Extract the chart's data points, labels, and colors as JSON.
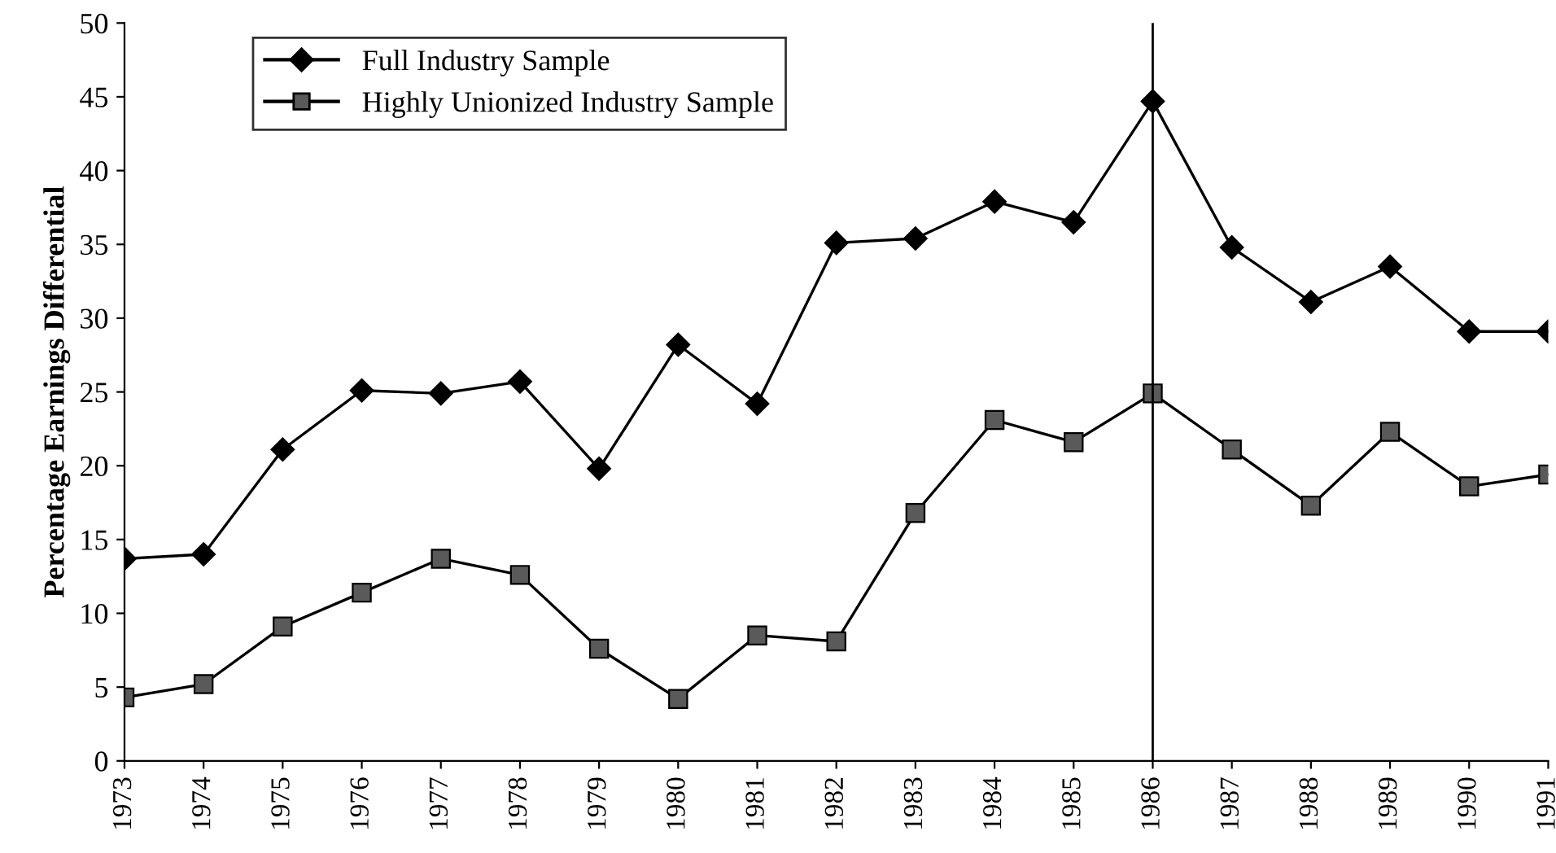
{
  "chart_data": {
    "type": "line",
    "ylabel": "Percentage Earnings Differential",
    "categories": [
      "1973",
      "1974",
      "1975",
      "1976",
      "1977",
      "1978",
      "1979",
      "1980",
      "1981",
      "1982",
      "1983",
      "1984",
      "1985",
      "1986",
      "1987",
      "1988",
      "1989",
      "1990",
      "1991"
    ],
    "series": [
      {
        "name": "Full Industry Sample",
        "color": "#000000",
        "marker": "diamond",
        "values": [
          13.7,
          14.0,
          21.1,
          25.1,
          24.9,
          25.7,
          19.8,
          28.2,
          24.2,
          35.1,
          35.4,
          37.9,
          36.5,
          44.7,
          34.8,
          31.1,
          33.5,
          29.1,
          29.1
        ]
      },
      {
        "name": "Highly Unionized Industry Sample",
        "color": "#5a5a5a",
        "marker": "square",
        "values": [
          4.3,
          5.2,
          9.1,
          11.4,
          13.7,
          12.6,
          7.6,
          4.2,
          8.5,
          8.1,
          16.8,
          23.1,
          21.6,
          24.9,
          21.1,
          17.3,
          22.3,
          18.6,
          19.4
        ]
      }
    ],
    "ylim": [
      0,
      50
    ],
    "yticks": [
      0,
      5,
      10,
      15,
      20,
      25,
      30,
      35,
      40,
      45,
      50
    ],
    "ref_lines": [
      {
        "axis": "x",
        "value": "1986",
        "color": "#000000"
      }
    ],
    "legend": "top left",
    "grid": false,
    "line_style": "solid"
  }
}
